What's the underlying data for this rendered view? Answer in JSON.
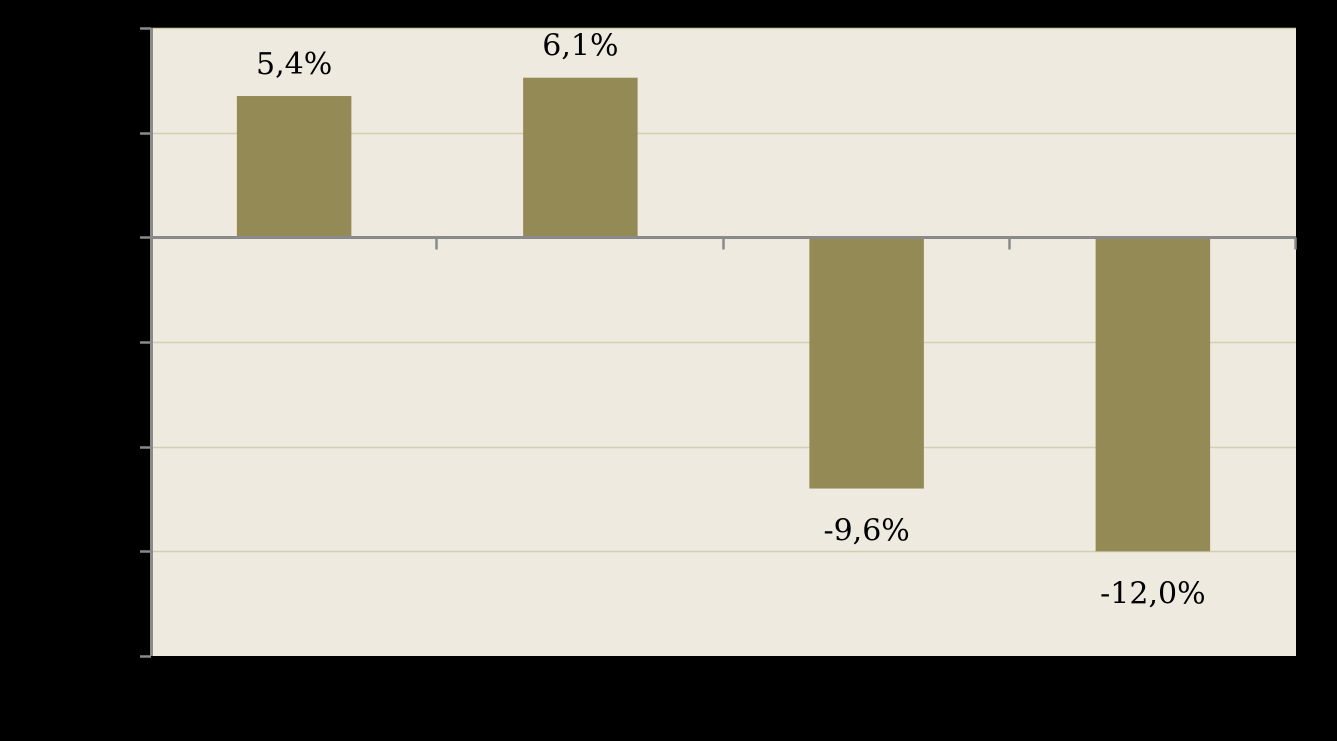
{
  "chart_data": {
    "type": "bar",
    "categories": [
      "",
      "",
      "",
      ""
    ],
    "values": [
      5.4,
      6.1,
      -9.6,
      -12.0
    ],
    "data_labels": [
      "5,4%",
      "6,1%",
      "-9,6%",
      "-12,0%"
    ],
    "title": "",
    "xlabel": "",
    "ylabel": "",
    "ylim": [
      -16,
      8
    ],
    "ytick_step": 4,
    "grid": true,
    "legend": "none"
  },
  "colors": {
    "page_background": "#000000",
    "plot_background": "#EFEADF",
    "bar": "#938A55",
    "gridline": "#D2CFB0",
    "axis": "#8A8A8A",
    "label_text": "#000000"
  }
}
